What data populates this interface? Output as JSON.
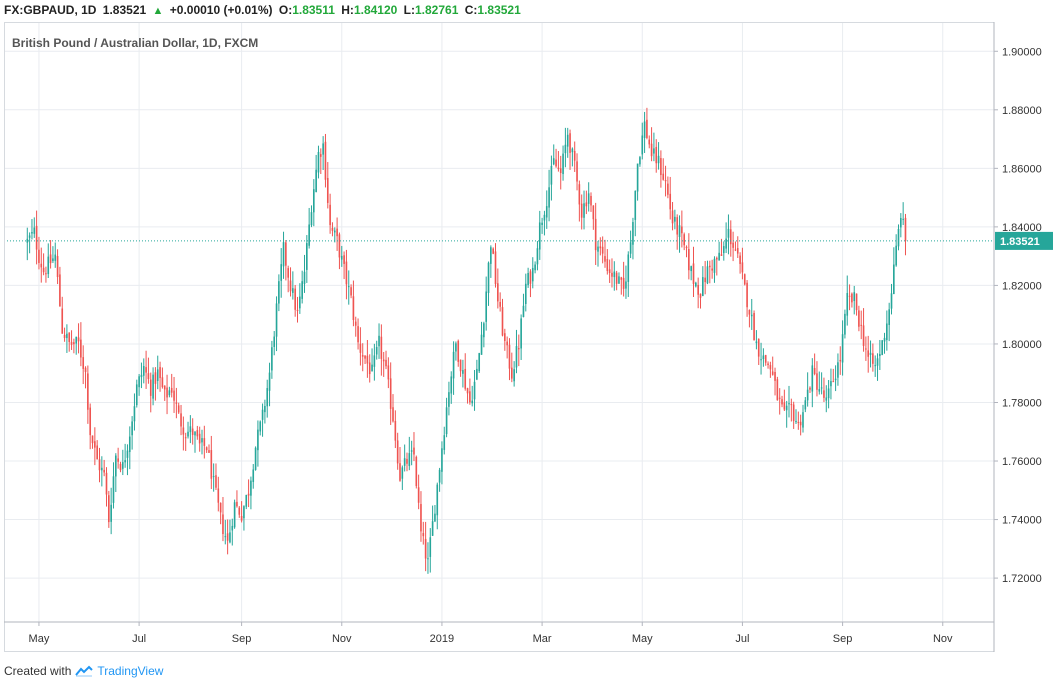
{
  "header": {
    "symbol": "FX:GBPAUD, 1D",
    "last": "1.83521",
    "change": "+0.00010 (+0.01%)",
    "o_label": "O:",
    "o_value": "1.83511",
    "h_label": "H:",
    "h_value": "1.84120",
    "l_label": "L:",
    "l_value": "1.82761",
    "c_label": "C:",
    "c_value": "1.83521"
  },
  "footer": {
    "created_with": "Created with",
    "brand": "TradingView"
  },
  "colors": {
    "up": "#26a69a",
    "down": "#ef5350",
    "grid": "#e9ecf0",
    "price_line": "#26a69a",
    "text": "#333333"
  },
  "chart_data": {
    "type": "candlestick",
    "title": "British Pound / Australian Dollar, 1D, FXCM",
    "ylim": [
      1.705,
      1.91
    ],
    "grid": true,
    "y_ticks": [
      "1.72000",
      "1.74000",
      "1.76000",
      "1.78000",
      "1.80000",
      "1.82000",
      "1.84000",
      "1.86000",
      "1.88000",
      "1.90000"
    ],
    "x_ticks": [
      {
        "label": "May",
        "t": 5
      },
      {
        "label": "Jul",
        "t": 48
      },
      {
        "label": "Sep",
        "t": 92
      },
      {
        "label": "Nov",
        "t": 135
      },
      {
        "label": "2019",
        "t": 178
      },
      {
        "label": "Mar",
        "t": 221
      },
      {
        "label": "May",
        "t": 264
      },
      {
        "label": "Jul",
        "t": 307
      },
      {
        "label": "Sep",
        "t": 350
      },
      {
        "label": "Nov",
        "t": 393
      }
    ],
    "t_range": [
      -10,
      415
    ],
    "last_price": 1.83521,
    "last_price_label": "1.83521",
    "close_path": [
      [
        0,
        1.835
      ],
      [
        3,
        1.838
      ],
      [
        5,
        1.83
      ],
      [
        7,
        1.825
      ],
      [
        12,
        1.83
      ],
      [
        15,
        1.805
      ],
      [
        18,
        1.8
      ],
      [
        22,
        1.8
      ],
      [
        25,
        1.79
      ],
      [
        27,
        1.77
      ],
      [
        30,
        1.76
      ],
      [
        33,
        1.755
      ],
      [
        35,
        1.74
      ],
      [
        38,
        1.762
      ],
      [
        41,
        1.758
      ],
      [
        44,
        1.77
      ],
      [
        47,
        1.785
      ],
      [
        50,
        1.792
      ],
      [
        53,
        1.785
      ],
      [
        56,
        1.79
      ],
      [
        59,
        1.782
      ],
      [
        62,
        1.785
      ],
      [
        65,
        1.775
      ],
      [
        68,
        1.77
      ],
      [
        71,
        1.77
      ],
      [
        74,
        1.765
      ],
      [
        77,
        1.765
      ],
      [
        80,
        1.752
      ],
      [
        83,
        1.74
      ],
      [
        86,
        1.732
      ],
      [
        89,
        1.745
      ],
      [
        92,
        1.742
      ],
      [
        95,
        1.75
      ],
      [
        98,
        1.765
      ],
      [
        101,
        1.775
      ],
      [
        104,
        1.79
      ],
      [
        107,
        1.812
      ],
      [
        110,
        1.832
      ],
      [
        113,
        1.82
      ],
      [
        116,
        1.81
      ],
      [
        119,
        1.825
      ],
      [
        122,
        1.848
      ],
      [
        125,
        1.865
      ],
      [
        127,
        1.868
      ],
      [
        130,
        1.84
      ],
      [
        133,
        1.835
      ],
      [
        136,
        1.825
      ],
      [
        139,
        1.815
      ],
      [
        142,
        1.8
      ],
      [
        145,
        1.795
      ],
      [
        148,
        1.79
      ],
      [
        151,
        1.8
      ],
      [
        154,
        1.79
      ],
      [
        157,
        1.775
      ],
      [
        160,
        1.755
      ],
      [
        163,
        1.76
      ],
      [
        166,
        1.762
      ],
      [
        169,
        1.735
      ],
      [
        172,
        1.725
      ],
      [
        175,
        1.745
      ],
      [
        178,
        1.765
      ],
      [
        181,
        1.785
      ],
      [
        184,
        1.8
      ],
      [
        187,
        1.79
      ],
      [
        190,
        1.78
      ],
      [
        193,
        1.79
      ],
      [
        196,
        1.81
      ],
      [
        199,
        1.835
      ],
      [
        202,
        1.815
      ],
      [
        205,
        1.8
      ],
      [
        208,
        1.79
      ],
      [
        211,
        1.8
      ],
      [
        214,
        1.82
      ],
      [
        217,
        1.825
      ],
      [
        220,
        1.84
      ],
      [
        223,
        1.85
      ],
      [
        226,
        1.862
      ],
      [
        229,
        1.858
      ],
      [
        232,
        1.872
      ],
      [
        235,
        1.86
      ],
      [
        238,
        1.845
      ],
      [
        241,
        1.852
      ],
      [
        244,
        1.835
      ],
      [
        247,
        1.83
      ],
      [
        250,
        1.825
      ],
      [
        253,
        1.822
      ],
      [
        256,
        1.818
      ],
      [
        259,
        1.835
      ],
      [
        262,
        1.862
      ],
      [
        265,
        1.875
      ],
      [
        268,
        1.865
      ],
      [
        271,
        1.862
      ],
      [
        274,
        1.855
      ],
      [
        277,
        1.842
      ],
      [
        280,
        1.838
      ],
      [
        283,
        1.83
      ],
      [
        286,
        1.822
      ],
      [
        289,
        1.818
      ],
      [
        292,
        1.825
      ],
      [
        295,
        1.828
      ],
      [
        298,
        1.83
      ],
      [
        301,
        1.838
      ],
      [
        304,
        1.832
      ],
      [
        307,
        1.822
      ],
      [
        310,
        1.812
      ],
      [
        313,
        1.8
      ],
      [
        316,
        1.795
      ],
      [
        319,
        1.792
      ],
      [
        322,
        1.782
      ],
      [
        325,
        1.775
      ],
      [
        328,
        1.778
      ],
      [
        331,
        1.772
      ],
      [
        334,
        1.78
      ],
      [
        337,
        1.79
      ],
      [
        340,
        1.785
      ],
      [
        343,
        1.78
      ],
      [
        346,
        1.788
      ],
      [
        349,
        1.795
      ],
      [
        352,
        1.815
      ],
      [
        355,
        1.815
      ],
      [
        358,
        1.805
      ],
      [
        361,
        1.795
      ],
      [
        364,
        1.792
      ],
      [
        367,
        1.8
      ],
      [
        370,
        1.812
      ],
      [
        373,
        1.832
      ],
      [
        375,
        1.845
      ],
      [
        377,
        1.835
      ]
    ],
    "t_last": 377
  }
}
